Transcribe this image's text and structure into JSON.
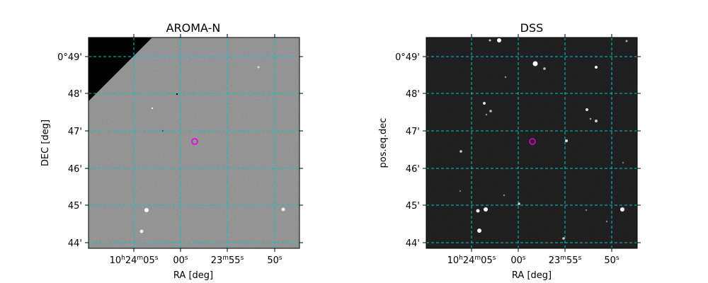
{
  "panels": [
    {
      "title": "AROMA-N",
      "xlabel": "RA [deg]",
      "ylabel": "DEC [deg]",
      "background": "#8c8c8c"
    },
    {
      "title": "DSS",
      "xlabel": "RA [deg]",
      "ylabel": "pos.eq.dec",
      "background": "#161616"
    }
  ],
  "dec_ticks": [
    "0°49'",
    "48'",
    "47'",
    "46'",
    "45'",
    "44'"
  ],
  "ra_ticks": [
    {
      "main": "10",
      "sup1": "h",
      "mid": "24",
      "sup2": "m",
      "last": "05",
      "sup3": "s"
    },
    {
      "main": "00",
      "sup3": "s"
    },
    {
      "main": "23",
      "sup2": "m",
      "last": "55",
      "sup3": "s"
    },
    {
      "main": "50",
      "sup3": "s"
    }
  ],
  "grid_color": "#00c8c8",
  "marker_color": "#e000e0"
}
